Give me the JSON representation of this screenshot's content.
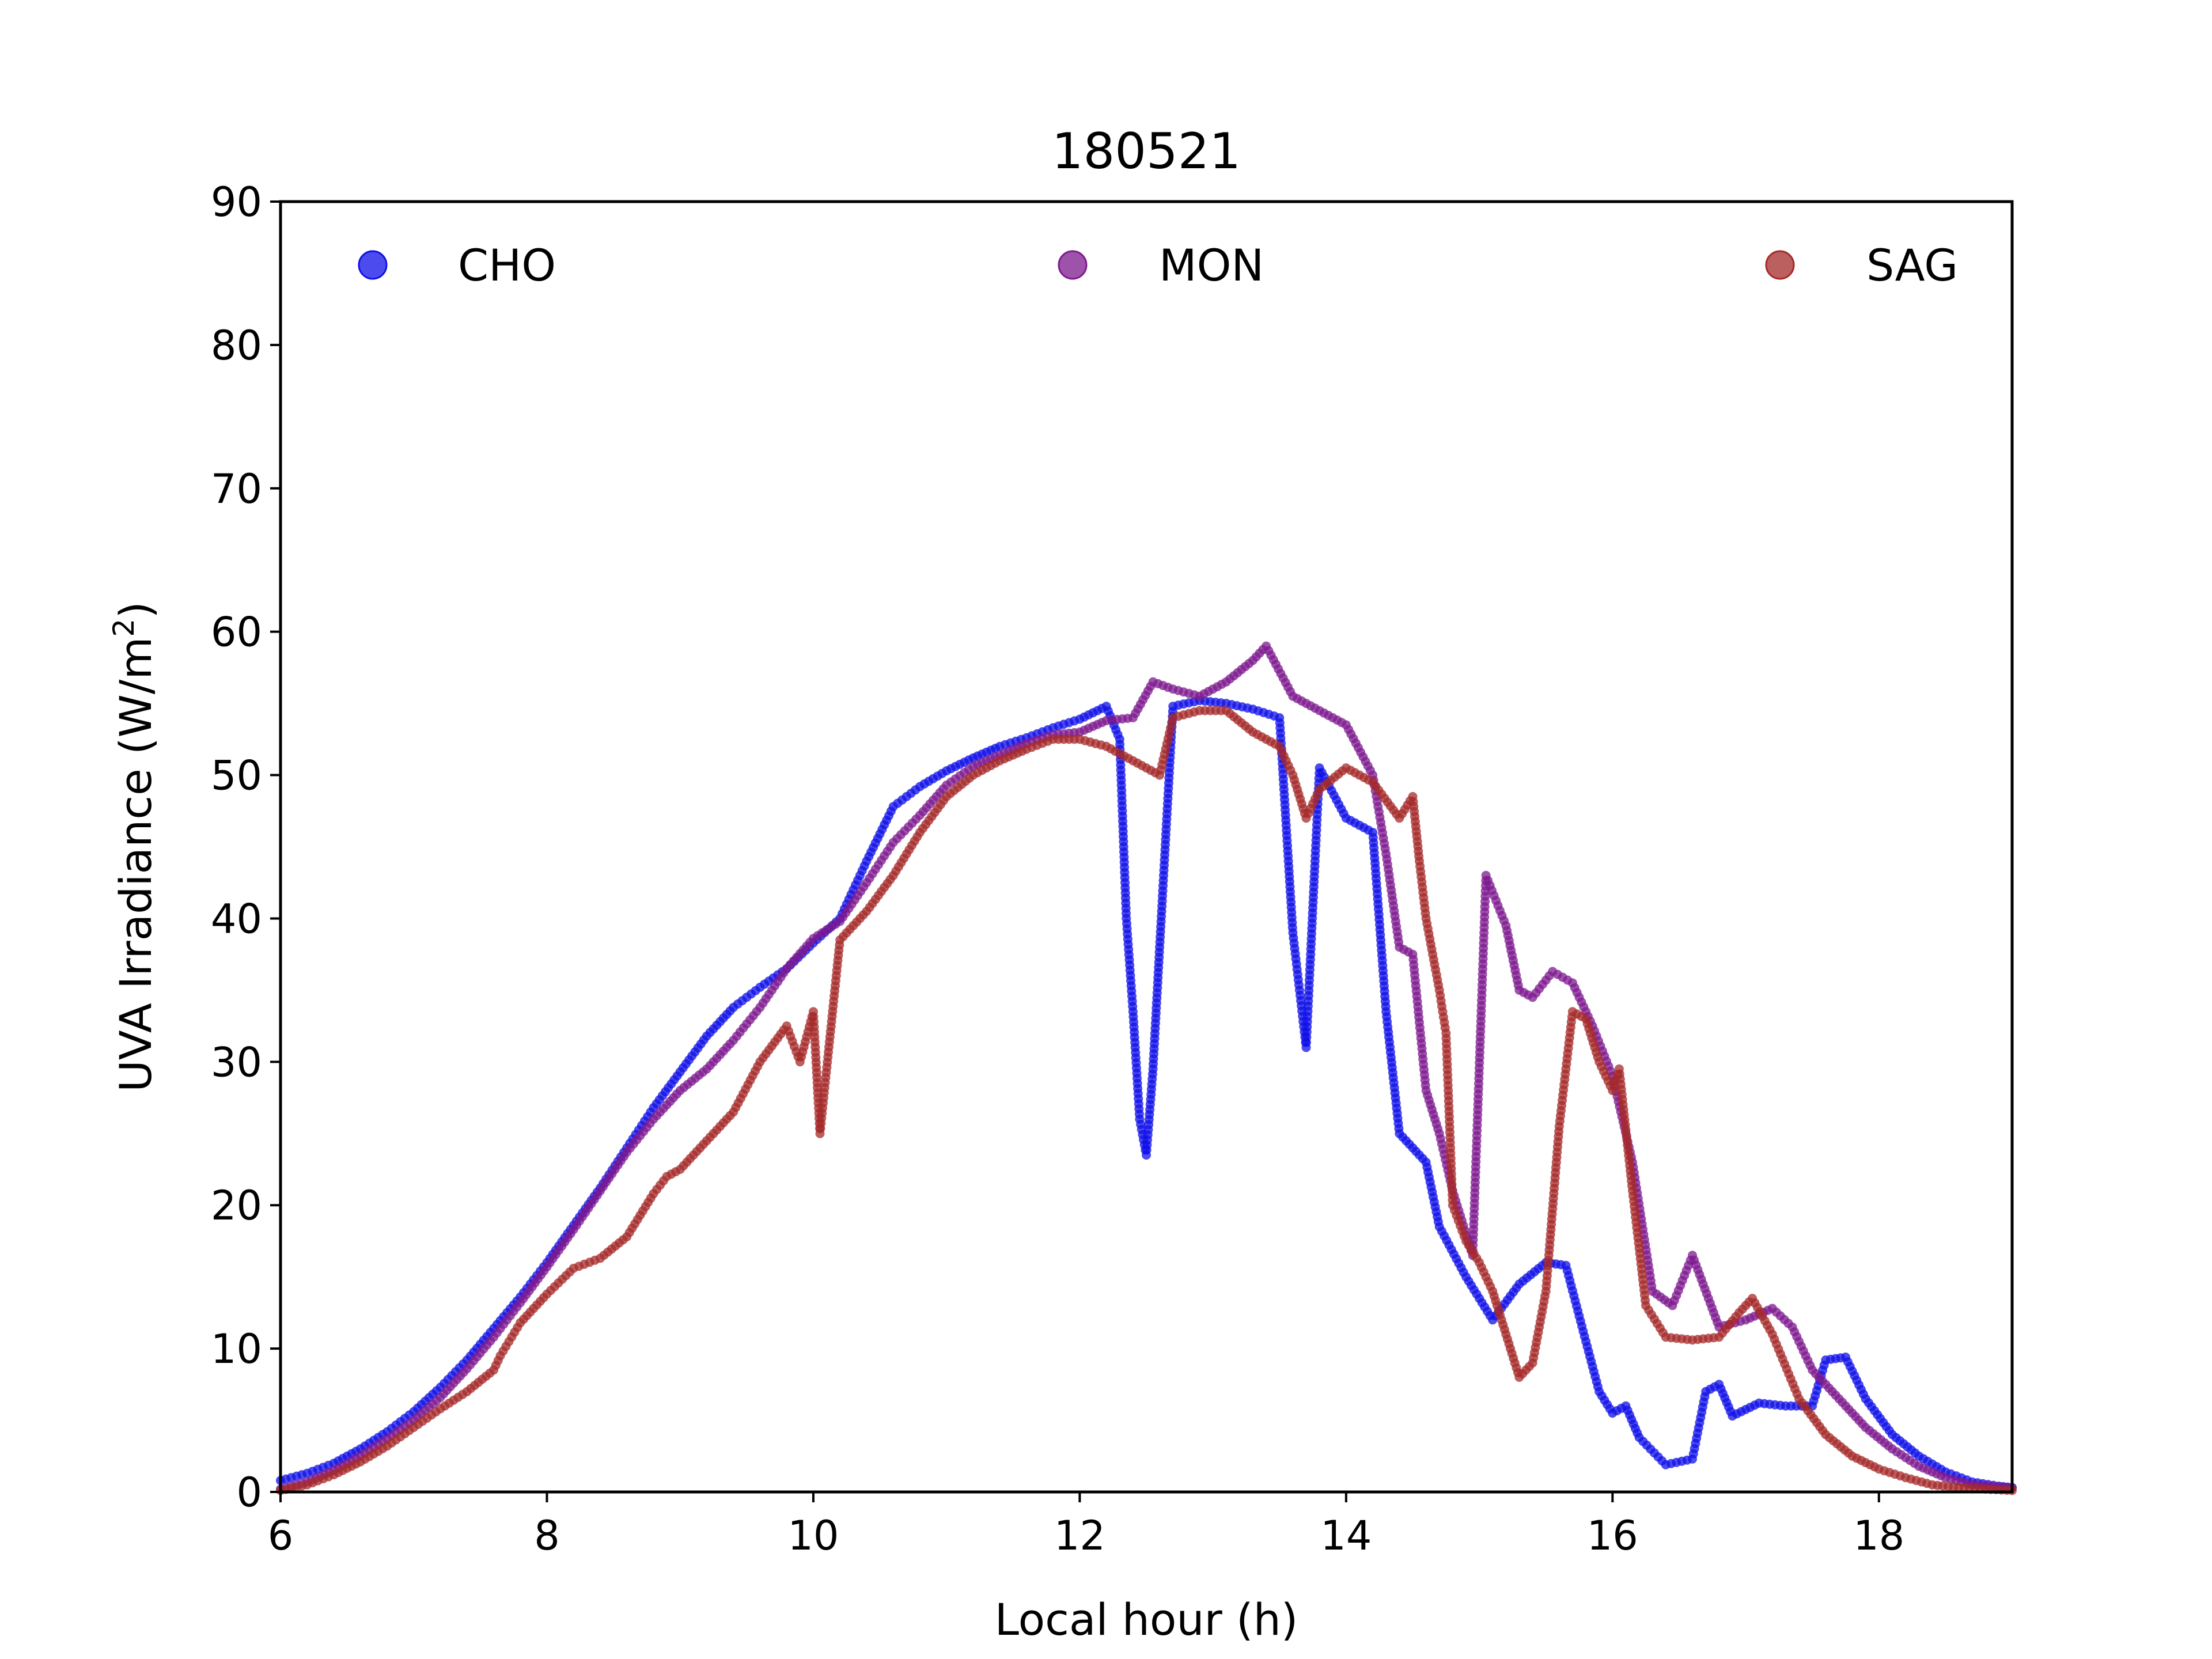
{
  "chart_data": {
    "type": "scatter",
    "title": "180521",
    "xlabel": "Local hour (h)",
    "ylabel": "UVA Irradiance (W/m",
    "ylabel_sup": "2",
    "ylabel_close": ")",
    "xlim": [
      6,
      19
    ],
    "ylim": [
      0,
      90
    ],
    "xticks": [
      6,
      8,
      10,
      12,
      14,
      16,
      18
    ],
    "yticks": [
      0,
      10,
      20,
      30,
      40,
      50,
      60,
      70,
      80,
      90
    ],
    "grid": false,
    "legend_position": "top",
    "series": [
      {
        "name": "CHO",
        "color": "#1010e8",
        "points": [
          [
            6.0,
            0.8
          ],
          [
            6.2,
            1.3
          ],
          [
            6.4,
            2.0
          ],
          [
            6.6,
            3.0
          ],
          [
            6.8,
            4.2
          ],
          [
            7.0,
            5.6
          ],
          [
            7.2,
            7.3
          ],
          [
            7.4,
            9.2
          ],
          [
            7.6,
            11.4
          ],
          [
            7.8,
            13.6
          ],
          [
            8.0,
            16.0
          ],
          [
            8.2,
            18.6
          ],
          [
            8.4,
            21.2
          ],
          [
            8.6,
            24.0
          ],
          [
            8.8,
            26.8
          ],
          [
            9.0,
            29.3
          ],
          [
            9.2,
            31.8
          ],
          [
            9.4,
            33.8
          ],
          [
            9.6,
            35.2
          ],
          [
            9.8,
            36.5
          ],
          [
            10.0,
            38.3
          ],
          [
            10.2,
            40.0
          ],
          [
            10.4,
            44.0
          ],
          [
            10.6,
            47.8
          ],
          [
            10.8,
            49.2
          ],
          [
            11.0,
            50.3
          ],
          [
            11.2,
            51.2
          ],
          [
            11.4,
            52.0
          ],
          [
            11.6,
            52.6
          ],
          [
            11.8,
            53.3
          ],
          [
            12.0,
            53.9
          ],
          [
            12.2,
            54.8
          ],
          [
            12.3,
            52.5
          ],
          [
            12.35,
            40.0
          ],
          [
            12.4,
            33.5
          ],
          [
            12.45,
            26.0
          ],
          [
            12.5,
            23.5
          ],
          [
            12.55,
            29.5
          ],
          [
            12.6,
            38.0
          ],
          [
            12.7,
            54.8
          ],
          [
            12.9,
            55.2
          ],
          [
            13.1,
            55.0
          ],
          [
            13.3,
            54.6
          ],
          [
            13.5,
            54.0
          ],
          [
            13.6,
            39.0
          ],
          [
            13.7,
            31.0
          ],
          [
            13.8,
            50.5
          ],
          [
            14.0,
            47.0
          ],
          [
            14.2,
            46.0
          ],
          [
            14.3,
            33.5
          ],
          [
            14.4,
            25.0
          ],
          [
            14.6,
            23.0
          ],
          [
            14.7,
            18.5
          ],
          [
            14.9,
            15.0
          ],
          [
            15.1,
            12.0
          ],
          [
            15.3,
            14.5
          ],
          [
            15.5,
            16.0
          ],
          [
            15.65,
            15.8
          ],
          [
            15.8,
            10.5
          ],
          [
            15.9,
            7.0
          ],
          [
            16.0,
            5.5
          ],
          [
            16.1,
            6.0
          ],
          [
            16.2,
            3.8
          ],
          [
            16.4,
            1.9
          ],
          [
            16.6,
            2.3
          ],
          [
            16.7,
            7.0
          ],
          [
            16.8,
            7.5
          ],
          [
            16.9,
            5.3
          ],
          [
            17.1,
            6.2
          ],
          [
            17.3,
            6.0
          ],
          [
            17.5,
            6.0
          ],
          [
            17.6,
            9.2
          ],
          [
            17.75,
            9.4
          ],
          [
            17.9,
            6.5
          ],
          [
            18.1,
            4.0
          ],
          [
            18.3,
            2.5
          ],
          [
            18.5,
            1.4
          ],
          [
            18.7,
            0.7
          ],
          [
            18.9,
            0.4
          ],
          [
            19.0,
            0.3
          ]
        ]
      },
      {
        "name": "MON",
        "color": "#7e1a8f",
        "points": [
          [
            6.0,
            0.2
          ],
          [
            6.2,
            0.7
          ],
          [
            6.4,
            1.5
          ],
          [
            6.6,
            2.5
          ],
          [
            6.8,
            3.7
          ],
          [
            7.0,
            5.0
          ],
          [
            7.2,
            6.6
          ],
          [
            7.4,
            8.6
          ],
          [
            7.6,
            10.8
          ],
          [
            7.8,
            13.2
          ],
          [
            8.0,
            15.7
          ],
          [
            8.2,
            18.3
          ],
          [
            8.4,
            21.0
          ],
          [
            8.6,
            23.7
          ],
          [
            8.8,
            26.0
          ],
          [
            9.0,
            28.0
          ],
          [
            9.2,
            29.5
          ],
          [
            9.4,
            31.5
          ],
          [
            9.6,
            33.8
          ],
          [
            9.8,
            36.5
          ],
          [
            10.0,
            38.6
          ],
          [
            10.2,
            39.8
          ],
          [
            10.4,
            42.5
          ],
          [
            10.6,
            45.3
          ],
          [
            10.8,
            47.2
          ],
          [
            11.0,
            49.3
          ],
          [
            11.2,
            50.6
          ],
          [
            11.4,
            51.4
          ],
          [
            11.6,
            52.2
          ],
          [
            11.8,
            52.8
          ],
          [
            12.0,
            53.0
          ],
          [
            12.2,
            53.8
          ],
          [
            12.4,
            54.0
          ],
          [
            12.55,
            56.5
          ],
          [
            12.7,
            56.0
          ],
          [
            12.9,
            55.5
          ],
          [
            13.1,
            56.5
          ],
          [
            13.3,
            58.0
          ],
          [
            13.4,
            59.0
          ],
          [
            13.6,
            55.5
          ],
          [
            13.8,
            54.5
          ],
          [
            14.0,
            53.5
          ],
          [
            14.2,
            50.0
          ],
          [
            14.3,
            44.5
          ],
          [
            14.4,
            38.0
          ],
          [
            14.5,
            37.5
          ],
          [
            14.6,
            28.0
          ],
          [
            14.7,
            25.0
          ],
          [
            14.8,
            21.0
          ],
          [
            14.95,
            16.5
          ],
          [
            15.05,
            43.0
          ],
          [
            15.2,
            39.5
          ],
          [
            15.3,
            35.0
          ],
          [
            15.4,
            34.5
          ],
          [
            15.55,
            36.3
          ],
          [
            15.7,
            35.5
          ],
          [
            15.85,
            32.5
          ],
          [
            16.0,
            29.0
          ],
          [
            16.15,
            23.0
          ],
          [
            16.3,
            14.0
          ],
          [
            16.45,
            13.0
          ],
          [
            16.6,
            16.5
          ],
          [
            16.8,
            11.5
          ],
          [
            17.0,
            12.0
          ],
          [
            17.2,
            12.8
          ],
          [
            17.35,
            11.5
          ],
          [
            17.5,
            8.5
          ],
          [
            17.7,
            6.5
          ],
          [
            17.9,
            4.5
          ],
          [
            18.1,
            3.0
          ],
          [
            18.3,
            1.8
          ],
          [
            18.5,
            1.0
          ],
          [
            18.7,
            0.5
          ],
          [
            19.0,
            0.3
          ]
        ]
      },
      {
        "name": "SAG",
        "color": "#a52a2a",
        "points": [
          [
            6.0,
            0.1
          ],
          [
            6.2,
            0.5
          ],
          [
            6.4,
            1.2
          ],
          [
            6.6,
            2.1
          ],
          [
            6.8,
            3.2
          ],
          [
            7.0,
            4.5
          ],
          [
            7.2,
            5.8
          ],
          [
            7.4,
            7.0
          ],
          [
            7.6,
            8.5
          ],
          [
            7.65,
            9.5
          ],
          [
            7.8,
            11.8
          ],
          [
            8.0,
            13.8
          ],
          [
            8.2,
            15.6
          ],
          [
            8.4,
            16.3
          ],
          [
            8.6,
            17.8
          ],
          [
            8.8,
            20.8
          ],
          [
            8.9,
            22.0
          ],
          [
            9.0,
            22.5
          ],
          [
            9.2,
            24.5
          ],
          [
            9.4,
            26.5
          ],
          [
            9.6,
            30.0
          ],
          [
            9.8,
            32.5
          ],
          [
            9.9,
            30.0
          ],
          [
            10.0,
            33.5
          ],
          [
            10.05,
            25.0
          ],
          [
            10.2,
            38.5
          ],
          [
            10.4,
            40.5
          ],
          [
            10.6,
            43.0
          ],
          [
            10.8,
            46.0
          ],
          [
            11.0,
            48.5
          ],
          [
            11.2,
            50.0
          ],
          [
            11.4,
            51.0
          ],
          [
            11.6,
            51.8
          ],
          [
            11.8,
            52.5
          ],
          [
            12.0,
            52.5
          ],
          [
            12.2,
            52.0
          ],
          [
            12.4,
            51.0
          ],
          [
            12.6,
            50.0
          ],
          [
            12.7,
            54.0
          ],
          [
            12.9,
            54.5
          ],
          [
            13.1,
            54.5
          ],
          [
            13.3,
            53.0
          ],
          [
            13.5,
            52.0
          ],
          [
            13.6,
            50.0
          ],
          [
            13.7,
            47.0
          ],
          [
            13.8,
            49.0
          ],
          [
            14.0,
            50.5
          ],
          [
            14.2,
            49.5
          ],
          [
            14.4,
            47.0
          ],
          [
            14.5,
            48.5
          ],
          [
            14.55,
            44.0
          ],
          [
            14.6,
            40.0
          ],
          [
            14.7,
            35.0
          ],
          [
            14.75,
            32.0
          ],
          [
            14.8,
            20.0
          ],
          [
            14.9,
            17.5
          ],
          [
            15.0,
            16.0
          ],
          [
            15.1,
            14.0
          ],
          [
            15.2,
            11.0
          ],
          [
            15.3,
            8.0
          ],
          [
            15.4,
            9.0
          ],
          [
            15.5,
            14.0
          ],
          [
            15.6,
            25.5
          ],
          [
            15.7,
            33.5
          ],
          [
            15.8,
            33.0
          ],
          [
            15.9,
            30.0
          ],
          [
            16.0,
            28.0
          ],
          [
            16.05,
            29.5
          ],
          [
            16.15,
            21.0
          ],
          [
            16.25,
            13.0
          ],
          [
            16.4,
            10.8
          ],
          [
            16.6,
            10.6
          ],
          [
            16.8,
            10.8
          ],
          [
            16.95,
            12.5
          ],
          [
            17.05,
            13.5
          ],
          [
            17.2,
            11.0
          ],
          [
            17.4,
            6.5
          ],
          [
            17.6,
            4.0
          ],
          [
            17.8,
            2.5
          ],
          [
            18.0,
            1.6
          ],
          [
            18.2,
            1.0
          ],
          [
            18.4,
            0.5
          ],
          [
            18.6,
            0.3
          ],
          [
            18.8,
            0.2
          ],
          [
            19.0,
            0.1
          ]
        ]
      }
    ]
  }
}
